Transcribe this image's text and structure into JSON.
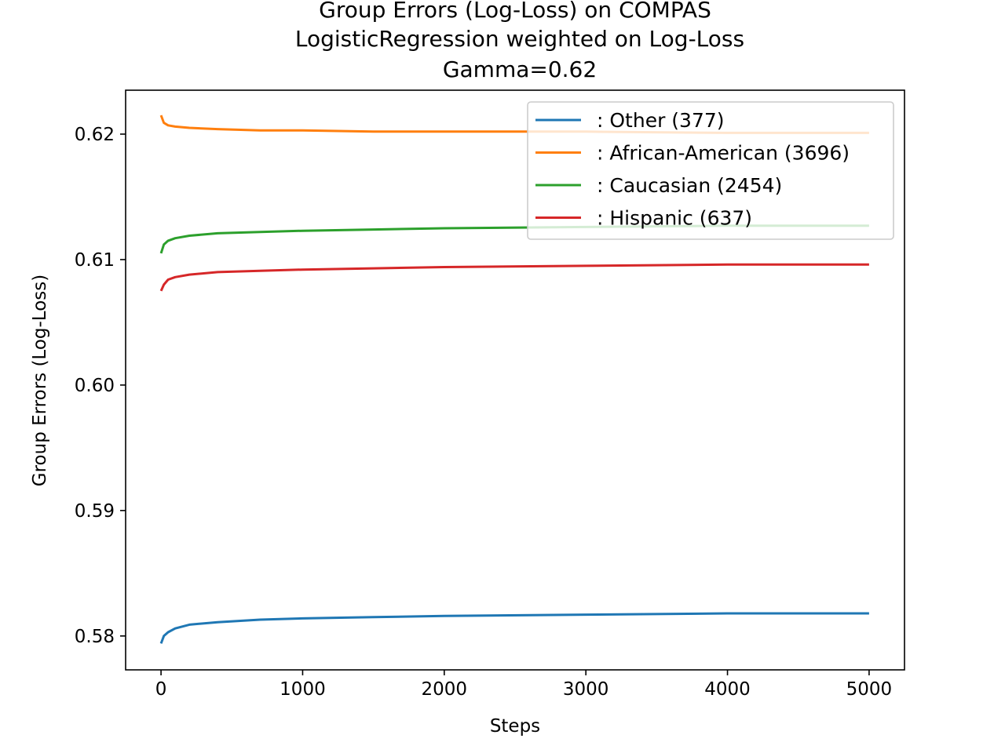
{
  "chart_data": {
    "type": "line",
    "title_lines": [
      "Group Errors (Log-Loss) on COMPAS",
      "LogisticRegression weighted on Log-Loss",
      "Gamma=0.62"
    ],
    "xlabel": "Steps",
    "ylabel": "Group Errors (Log-Loss)",
    "xlim": [
      -250,
      5250
    ],
    "ylim": [
      0.5773,
      0.6235
    ],
    "xticks": [
      0,
      1000,
      2000,
      3000,
      4000,
      5000
    ],
    "xtick_labels": [
      "0",
      "1000",
      "2000",
      "3000",
      "4000",
      "5000"
    ],
    "yticks": [
      0.58,
      0.59,
      0.6,
      0.61,
      0.62
    ],
    "ytick_labels": [
      "0.58",
      "0.59",
      "0.60",
      "0.61",
      "0.62"
    ],
    "grid": false,
    "legend_position": "upper-right",
    "series": [
      {
        "name": ": Other  (377)",
        "color": "#1f77b4",
        "x": [
          0,
          20,
          50,
          100,
          200,
          400,
          700,
          1000,
          1500,
          2000,
          3000,
          4000,
          5000
        ],
        "y": [
          0.5794,
          0.58,
          0.5803,
          0.5806,
          0.5809,
          0.5811,
          0.5813,
          0.5814,
          0.5815,
          0.5816,
          0.5817,
          0.5818,
          0.5818
        ]
      },
      {
        "name": ": African-American  (3696)",
        "color": "#ff7f0e",
        "x": [
          0,
          20,
          50,
          100,
          200,
          400,
          700,
          1000,
          1500,
          2000,
          3000,
          4000,
          5000
        ],
        "y": [
          0.6215,
          0.6209,
          0.6207,
          0.6206,
          0.6205,
          0.6204,
          0.6203,
          0.6203,
          0.6202,
          0.6202,
          0.6202,
          0.6201,
          0.6201
        ]
      },
      {
        "name": ": Caucasian  (2454)",
        "color": "#2ca02c",
        "x": [
          0,
          20,
          50,
          100,
          200,
          400,
          700,
          1000,
          1500,
          2000,
          3000,
          4000,
          5000
        ],
        "y": [
          0.6105,
          0.6112,
          0.6115,
          0.6117,
          0.6119,
          0.6121,
          0.6122,
          0.6123,
          0.6124,
          0.6125,
          0.6126,
          0.6127,
          0.6127
        ]
      },
      {
        "name": ": Hispanic  (637)",
        "color": "#d62728",
        "x": [
          0,
          20,
          50,
          100,
          200,
          400,
          700,
          1000,
          1500,
          2000,
          3000,
          4000,
          5000
        ],
        "y": [
          0.6075,
          0.608,
          0.6084,
          0.6086,
          0.6088,
          0.609,
          0.6091,
          0.6092,
          0.6093,
          0.6094,
          0.6095,
          0.6096,
          0.6096
        ]
      }
    ]
  }
}
